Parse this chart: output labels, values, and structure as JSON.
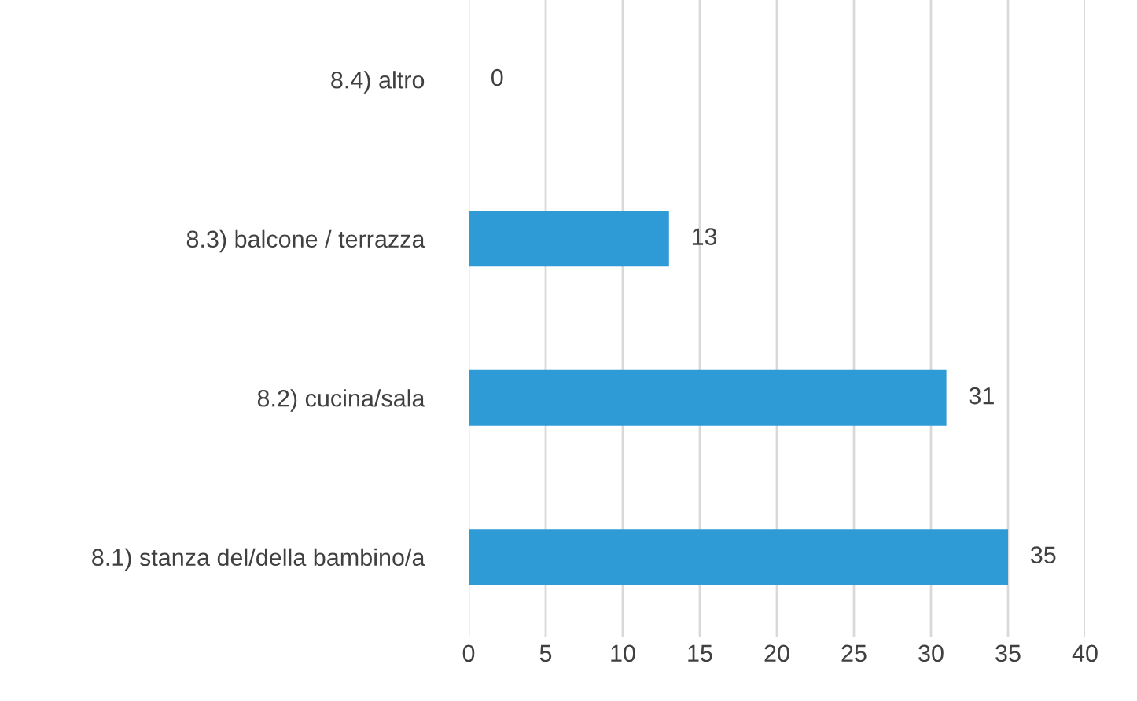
{
  "chart_data": {
    "type": "bar",
    "orientation": "horizontal",
    "categories": [
      "8.4) altro",
      "8.3) balcone / terrazza",
      "8.2) cucina/sala",
      "8.1) stanza del/della bambino/a"
    ],
    "values": [
      0,
      13,
      31,
      35
    ],
    "color": "#2e9bd6",
    "xlim": [
      0,
      40
    ],
    "xticks": [
      0,
      5,
      10,
      15,
      20,
      25,
      30,
      35,
      40
    ],
    "grid": "x",
    "data_labels": true,
    "legend": false
  }
}
